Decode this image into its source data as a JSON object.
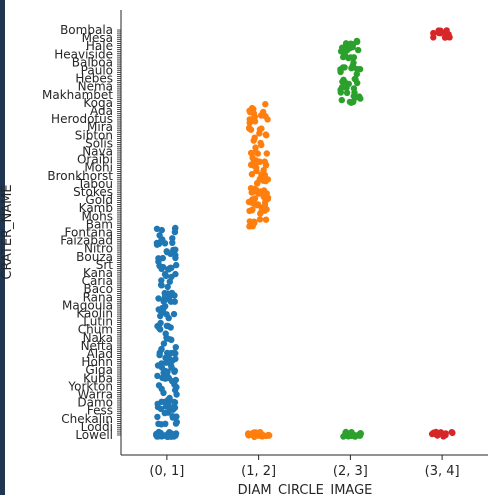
{
  "chart_data": {
    "type": "scatter",
    "subtype": "stripplot",
    "xlabel": "DIAM_CIRCLE_IMAGE",
    "ylabel": "CRATER_NAME",
    "categories": [
      "(0, 1]",
      "(1, 2]",
      "(2, 3]",
      "(3, 4]"
    ],
    "colors": [
      "#1f77b4",
      "#ff7f0e",
      "#2ca02c",
      "#d62728"
    ],
    "series": [
      {
        "category": "(0, 1]",
        "point_count": 170
      },
      {
        "category": "(1, 2]",
        "point_count": 110
      },
      {
        "category": "(2, 3]",
        "point_count": 60
      },
      {
        "category": "(3, 4]",
        "point_count": 14
      }
    ],
    "y_tick_labels": [
      "Bombala",
      "Mesa",
      "Hale",
      "Heaviside",
      "Balboa",
      "Paulo",
      "Hebes",
      "Nema",
      "Makhambet",
      "Koga",
      "Ada",
      "Herodotus",
      "Mira",
      "Sibton",
      "Solis",
      "Nava",
      "Oraibi",
      "Mohi",
      "Bronkhorst",
      "Tabou",
      "Stokes",
      "Gold",
      "Kamb",
      "Mohs",
      "Bam",
      "Fontana",
      "Faizabad",
      "Nitro",
      "Bouza",
      "Srt",
      "Kana",
      "Caria",
      "Baco",
      "Rana",
      "Magoula",
      "Kaolin",
      "Lutin",
      "Chum",
      "Naka",
      "Nefta",
      "Alad",
      "Hohn",
      "Giga",
      "Kuba",
      "Yorkton",
      "Warra",
      "Damo",
      "Fess",
      "Chekalin",
      "Loddi",
      "Lowell"
    ],
    "grid": false
  }
}
